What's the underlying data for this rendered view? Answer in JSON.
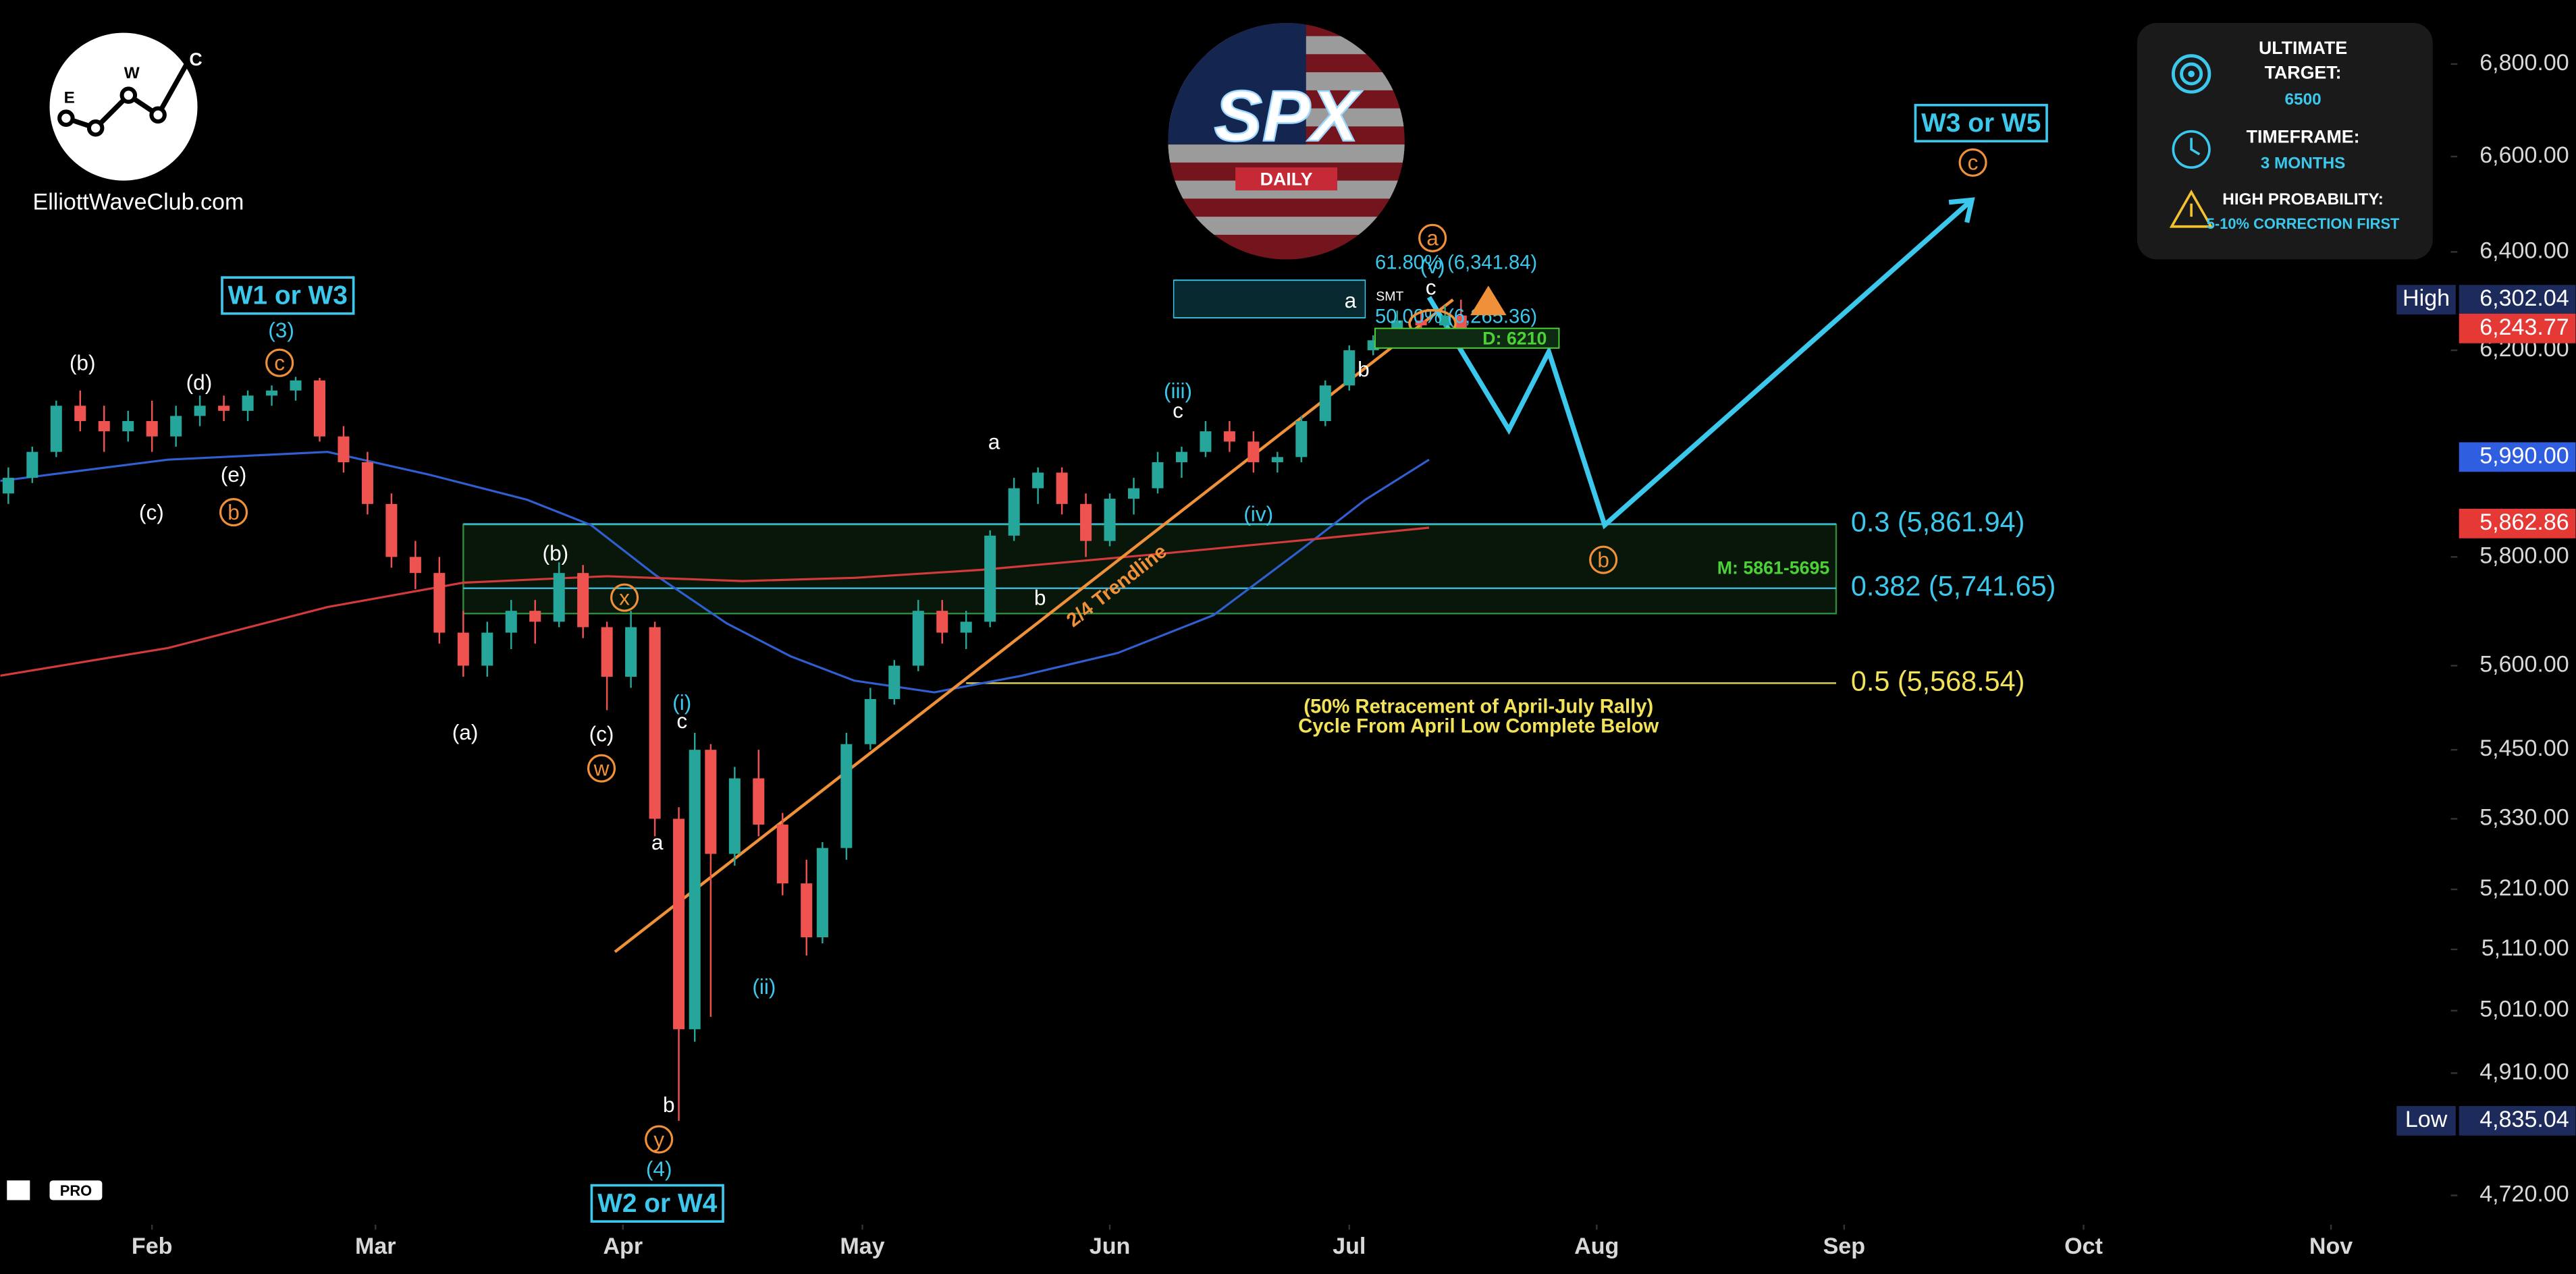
{
  "chart_data": {
    "type": "candlestick",
    "log_scale": true,
    "brand": {
      "site": "ElliottWaveClub.com",
      "logo_letters": [
        "E",
        "W",
        "C"
      ],
      "symbol": "SPX",
      "interval": "DAILY",
      "platform_badge": "PRO"
    },
    "xlim": [
      12,
      318.6
    ],
    "xticks": [
      {
        "value": 31,
        "label": "Feb"
      },
      {
        "value": 59,
        "label": "Mar"
      },
      {
        "value": 90,
        "label": "Apr"
      },
      {
        "value": 120,
        "label": "May"
      },
      {
        "value": 151,
        "label": "Jun"
      },
      {
        "value": 181,
        "label": "Jul"
      },
      {
        "value": 212,
        "label": "Aug"
      },
      {
        "value": 243,
        "label": "Sep"
      },
      {
        "value": 273,
        "label": "Oct"
      },
      {
        "value": 304,
        "label": "Nov"
      }
    ],
    "ylim": [
      4678,
      6942
    ],
    "yticks": [
      {
        "value": 4720,
        "label": "4,720.00"
      },
      {
        "value": 4910,
        "label": "4,910.00"
      },
      {
        "value": 5010,
        "label": "5,010.00"
      },
      {
        "value": 5110,
        "label": "5,110.00"
      },
      {
        "value": 5210,
        "label": "5,210.00"
      },
      {
        "value": 5330,
        "label": "5,330.00"
      },
      {
        "value": 5450,
        "label": "5,450.00"
      },
      {
        "value": 5600,
        "label": "5,600.00"
      },
      {
        "value": 5800,
        "label": "5,800.00"
      },
      {
        "value": 6200,
        "label": "6,200.00"
      },
      {
        "value": 6400,
        "label": "6,400.00"
      },
      {
        "value": 6600,
        "label": "6,600.00"
      },
      {
        "value": 6800,
        "label": "6,800.00"
      }
    ],
    "up_color": "#26a69a",
    "down_color": "#ef5350",
    "candles": {
      "x": [
        13,
        16,
        19,
        22,
        25,
        28,
        31,
        34,
        37,
        40,
        43,
        46,
        49,
        52,
        55,
        58,
        61,
        64,
        67,
        70,
        73,
        76,
        79,
        82,
        85,
        88,
        91,
        94,
        97,
        99,
        101,
        104,
        107,
        110,
        113,
        115,
        118,
        121,
        124,
        127,
        130,
        133,
        136,
        139,
        142,
        145,
        148,
        151,
        154,
        157,
        160,
        163,
        166,
        169,
        172,
        175,
        178,
        181,
        184,
        187,
        190,
        193,
        195
      ],
      "open": [
        5920,
        5950,
        6000,
        6090,
        6060,
        6040,
        6060,
        6030,
        6070,
        6090,
        6080,
        6110,
        6120,
        6140,
        6030,
        5980,
        5900,
        5800,
        5770,
        5660,
        5600,
        5660,
        5700,
        5680,
        5770,
        5670,
        5580,
        5670,
        5330,
        4980,
        5450,
        5270,
        5400,
        5320,
        5220,
        5130,
        5280,
        5460,
        5540,
        5600,
        5700,
        5660,
        5680,
        5840,
        5930,
        5960,
        5900,
        5830,
        5910,
        5930,
        5980,
        6000,
        6040,
        6020,
        5980,
        5990,
        6060,
        6130,
        6200,
        6220,
        6260,
        6250,
        6270
      ],
      "high": [
        5970,
        6010,
        6100,
        6120,
        6090,
        6080,
        6100,
        6090,
        6110,
        6110,
        6120,
        6130,
        6147,
        6145,
        6050,
        6000,
        5920,
        5830,
        5800,
        5700,
        5680,
        5720,
        5720,
        5790,
        5785,
        5680,
        5700,
        5680,
        5350,
        5480,
        5460,
        5420,
        5450,
        5340,
        5260,
        5290,
        5480,
        5560,
        5610,
        5720,
        5720,
        5700,
        5850,
        5950,
        5970,
        5970,
        5920,
        5920,
        5950,
        6000,
        6010,
        6060,
        6060,
        6040,
        6000,
        6070,
        6140,
        6210,
        6230,
        6280,
        6280,
        6290,
        6302
      ],
      "low": [
        5900,
        5940,
        5990,
        6040,
        6000,
        6020,
        6000,
        6010,
        6050,
        6060,
        6060,
        6090,
        6100,
        6020,
        5960,
        5880,
        5780,
        5740,
        5640,
        5580,
        5580,
        5630,
        5640,
        5670,
        5650,
        5520,
        5560,
        5300,
        4835,
        4960,
        5000,
        5250,
        5300,
        5200,
        5100,
        5120,
        5260,
        5450,
        5530,
        5590,
        5640,
        5630,
        5670,
        5830,
        5900,
        5880,
        5800,
        5820,
        5880,
        5920,
        5950,
        5990,
        6000,
        5960,
        5960,
        5980,
        6050,
        6120,
        6190,
        6210,
        6220,
        6240,
        6240
      ],
      "close": [
        5950,
        6000,
        6090,
        6060,
        6040,
        6060,
        6030,
        6070,
        6090,
        6080,
        6110,
        6120,
        6140,
        6030,
        5980,
        5900,
        5800,
        5770,
        5660,
        5600,
        5660,
        5700,
        5680,
        5770,
        5670,
        5580,
        5670,
        5330,
        4980,
        5450,
        5270,
        5400,
        5320,
        5220,
        5130,
        5280,
        5460,
        5540,
        5600,
        5700,
        5660,
        5680,
        5840,
        5930,
        5960,
        5900,
        5830,
        5910,
        5930,
        5980,
        6000,
        6040,
        6020,
        5980,
        5990,
        6060,
        6130,
        6200,
        6220,
        6260,
        6250,
        6270,
        6244
      ]
    },
    "ma": [
      {
        "color": "#2f5fd0",
        "x": [
          12,
          33,
          53,
          66,
          78,
          86,
          94,
          103,
          111,
          119,
          129,
          140,
          152,
          164,
          175,
          183,
          191
        ],
        "values": [
          5944,
          5985,
          6000,
          5955,
          5908,
          5860,
          5767,
          5677,
          5617,
          5573,
          5552,
          5582,
          5623,
          5692,
          5814,
          5908,
          5985
        ]
      },
      {
        "color": "#d33a3a",
        "x": [
          12,
          33,
          53,
          70,
          88,
          105,
          119,
          135,
          156,
          177,
          191
        ],
        "values": [
          5582,
          5632,
          5707,
          5752,
          5764,
          5755,
          5761,
          5776,
          5804,
          5834,
          5855
        ]
      }
    ],
    "projection": {
      "color": "#3cc8ec",
      "x": [
        191,
        201,
        206,
        213,
        259
      ],
      "values": [
        6307,
        6043,
        6197,
        5860,
        6508
      ]
    },
    "trendline": {
      "label": "2/4 Trendline",
      "color": "#f0913a",
      "x": [
        89,
        194
      ],
      "values": [
        5106,
        6302
      ]
    },
    "zone": {
      "label": "M: 5861-5695",
      "top": 5861,
      "bottom": 5695,
      "x": [
        70,
        242
      ]
    },
    "levels": [
      {
        "label": "61.80% (6,341.84)",
        "value": 6341.84,
        "color": "#3cc8ec",
        "x": [
          159,
          183
        ]
      },
      {
        "label": "50.00% (6,265.36)",
        "value": 6265.36,
        "color": "#3cc8ec",
        "x": [
          159,
          183
        ]
      },
      {
        "label": "0.3 (5,861.94)",
        "value": 5861.94,
        "color": "#3cc8ec",
        "x": [
          70,
          242
        ]
      },
      {
        "label": "0.382 (5,741.65)",
        "value": 5741.65,
        "color": "#3cc8ec",
        "x": [
          70,
          242
        ]
      },
      {
        "label": "0.5 (5,568.54)",
        "value": 5568.54,
        "color": "#f2e25a",
        "x": [
          133,
          242
        ]
      }
    ],
    "notes": [
      "(50% Retracement of April-July Rally)",
      "Cycle From April Low Complete Below"
    ],
    "price_labels": [
      {
        "tag": "High",
        "label": "6,302.04",
        "value": 6302.04,
        "color": "#1c2b5c"
      },
      {
        "label": "6,243.77",
        "value": 6243.77,
        "color": "#e53935"
      },
      {
        "label": "5,990.00",
        "value": 5990,
        "color": "#2f5fe0"
      },
      {
        "label": "5,862.86",
        "value": 5862.86,
        "color": "#e53935"
      },
      {
        "tag": "Low",
        "label": "4,835.04",
        "value": 4835.04,
        "color": "#1c2b5c"
      }
    ],
    "annotations": [
      {
        "text": "(b)",
        "style": "plain",
        "color": "#ffffff"
      },
      {
        "text": "(d)",
        "style": "plain",
        "color": "#ffffff"
      },
      {
        "text": "c",
        "style": "circle",
        "color": "#f0913a"
      },
      {
        "text": "(3)",
        "style": "plain",
        "color": "#3cc8ec"
      },
      {
        "text": "W1 or W3",
        "style": "box",
        "color": "#3cc8ec"
      },
      {
        "text": "(e)",
        "style": "plain",
        "color": "#ffffff"
      },
      {
        "text": "b",
        "style": "circle",
        "color": "#f0913a"
      },
      {
        "text": "(c)",
        "style": "plain",
        "color": "#ffffff"
      },
      {
        "text": "(b)",
        "style": "plain",
        "color": "#ffffff"
      },
      {
        "text": "x",
        "style": "circle",
        "color": "#f0913a"
      },
      {
        "text": "(a)",
        "style": "plain",
        "color": "#ffffff"
      },
      {
        "text": "(c)",
        "style": "plain",
        "color": "#ffffff"
      },
      {
        "text": "w",
        "style": "circle",
        "color": "#f0913a"
      },
      {
        "text": "(i)",
        "style": "plain",
        "color": "#3cc8ec"
      },
      {
        "text": "c",
        "style": "plain",
        "color": "#ffffff"
      },
      {
        "text": "a",
        "style": "plain",
        "color": "#ffffff"
      },
      {
        "text": "b",
        "style": "plain",
        "color": "#ffffff"
      },
      {
        "text": "y",
        "style": "circle",
        "color": "#f0913a"
      },
      {
        "text": "(4)",
        "style": "plain",
        "color": "#3cc8ec"
      },
      {
        "text": "W2 or W4",
        "style": "box",
        "color": "#3cc8ec"
      },
      {
        "text": "(ii)",
        "style": "plain",
        "color": "#3cc8ec"
      },
      {
        "text": "a",
        "style": "plain",
        "color": "#ffffff"
      },
      {
        "text": "b",
        "style": "plain",
        "color": "#ffffff"
      },
      {
        "text": "(iii)",
        "style": "plain",
        "color": "#3cc8ec"
      },
      {
        "text": "c",
        "style": "plain",
        "color": "#ffffff"
      },
      {
        "text": "(iv)",
        "style": "plain",
        "color": "#3cc8ec"
      },
      {
        "text": "a",
        "style": "plain",
        "color": "#ffffff"
      },
      {
        "text": "b",
        "style": "plain",
        "color": "#ffffff"
      },
      {
        "text": "SMT",
        "style": "small",
        "color": "#ffffff"
      },
      {
        "text": "c",
        "style": "plain",
        "color": "#ffffff"
      },
      {
        "text": "(v)",
        "style": "plain",
        "color": "#3cc8ec"
      },
      {
        "text": "a",
        "style": "circle",
        "color": "#f0913a"
      },
      {
        "text": "W3 or W5",
        "style": "box",
        "color": "#3cc8ec"
      },
      {
        "text": "c",
        "style": "circle",
        "color": "#f0913a"
      },
      {
        "text": "b",
        "style": "circle",
        "color": "#f0913a"
      },
      {
        "text": "D: 6210",
        "style": "greenbox",
        "color": "#4cd137"
      }
    ],
    "panel": {
      "items": [
        {
          "title_lines": [
            "ULTIMATE",
            "TARGET:"
          ],
          "value": "6500"
        },
        {
          "title_lines": [
            "TIMEFRAME:"
          ],
          "value": "3 MONTHS"
        },
        {
          "title_lines": [
            "HIGH PROBABILITY:"
          ],
          "value": "5-10% CORRECTION FIRST"
        }
      ]
    }
  }
}
